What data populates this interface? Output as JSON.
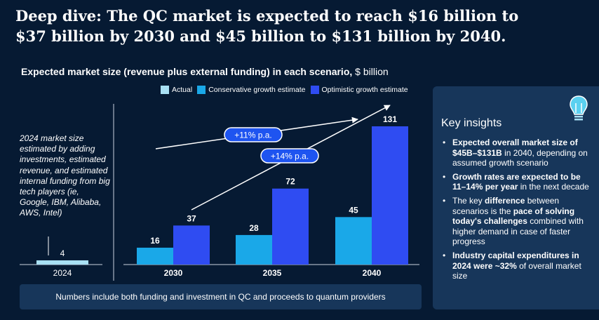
{
  "title": "Deep dive: The QC market is expected to reach $16 billion to $37 billion by 2030 and $45 billion to $131 billion by 2040.",
  "subtitle": {
    "main": "Expected market size (revenue plus external funding) in each scenario,",
    "unit": "$ billion"
  },
  "annotation": "2024 market size estimated by adding investments, estimated revenue, and estimated internal funding from big tech players (ie, Google, IBM, Alibaba, AWS, Intel)",
  "footer": "Numbers include both funding and investment in QC and proceeds to quantum providers",
  "colors": {
    "background": "#061a33",
    "panel": "#17365a",
    "actual": "#a8e0f4",
    "conservative": "#1aa8e8",
    "optimistic": "#2f4cf2",
    "bubble": "#1e54f0"
  },
  "chart_data": {
    "type": "bar",
    "categories": [
      "2024",
      "2030",
      "2035",
      "2040"
    ],
    "series": [
      {
        "name": "Actual",
        "values": [
          4,
          null,
          null,
          null
        ]
      },
      {
        "name": "Conservative growth estimate",
        "values": [
          null,
          16,
          28,
          45
        ]
      },
      {
        "name": "Optimistic growth estimate",
        "values": [
          null,
          37,
          72,
          131
        ]
      }
    ],
    "annotations": [
      {
        "text": "+11% p.a.",
        "series": "Conservative growth estimate"
      },
      {
        "text": "+14% p.a.",
        "series": "Optimistic growth estimate"
      }
    ],
    "title": "Expected market size (revenue plus external funding) in each scenario",
    "ylabel": "$ billion",
    "ylim": [
      0,
      131
    ],
    "legend_position": "top-right"
  },
  "key_insights": {
    "title": "Key insights",
    "bullet": "•",
    "items": [
      {
        "parts": [
          {
            "t": "Expected overall market size of $45B–$131B",
            "b": true
          },
          {
            "t": " in 2040, depending on assumed growth scenario",
            "b": false
          }
        ]
      },
      {
        "parts": [
          {
            "t": "Growth rates are expected to be 11–14% per year",
            "b": true
          },
          {
            "t": " in the next decade",
            "b": false
          }
        ]
      },
      {
        "parts": [
          {
            "t": "The key ",
            "b": false
          },
          {
            "t": "difference",
            "b": true
          },
          {
            "t": " between scenarios is the ",
            "b": false
          },
          {
            "t": "pace of solving today's challenges",
            "b": true
          },
          {
            "t": " combined with higher demand in case of faster progress",
            "b": false
          }
        ]
      },
      {
        "parts": [
          {
            "t": "Industry capital expenditures in 2024 were ~32%",
            "b": true
          },
          {
            "t": " of overall market size",
            "b": false
          }
        ]
      }
    ]
  }
}
